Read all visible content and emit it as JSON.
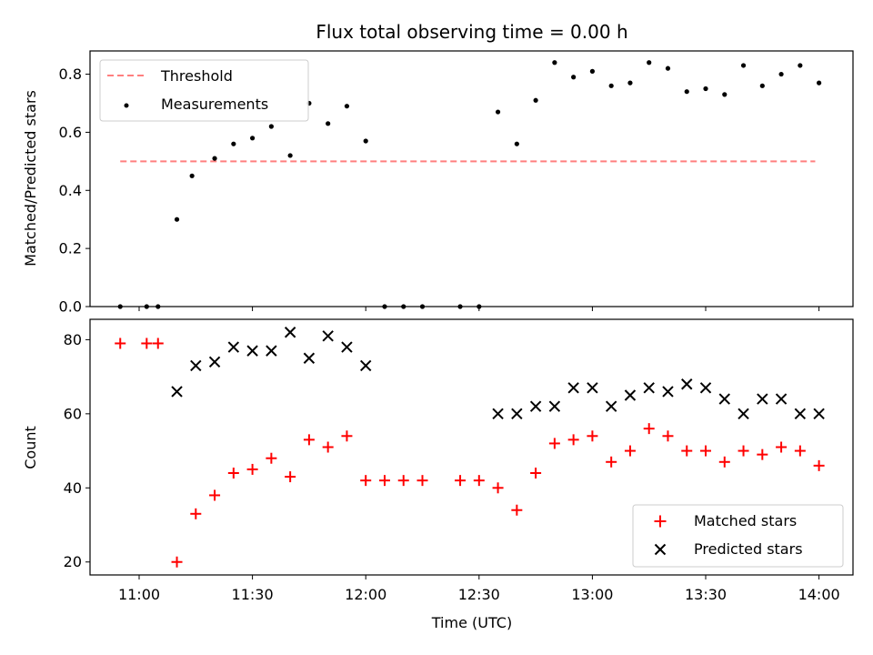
{
  "chart_data": [
    {
      "type": "scatter",
      "title": "Flux total observing time = 0.00 h",
      "xlabel": "",
      "ylabel": "Matched/Predicted stars",
      "ylim": [
        0,
        0.88
      ],
      "yticks": [
        0.0,
        0.2,
        0.4,
        0.6,
        0.8
      ],
      "ytick_labels": [
        "0.0",
        "0.2",
        "0.4",
        "0.6",
        "0.8"
      ],
      "xlim": [
        "10:47",
        "14:09"
      ],
      "grid": false,
      "legend_position": "top-left",
      "series": [
        {
          "name": "Threshold",
          "style": "dashed-line",
          "color": "#ff7f7f",
          "x": [
            "10:55",
            "13:59"
          ],
          "y": [
            0.5,
            0.5
          ]
        },
        {
          "name": "Measurements",
          "style": "dot",
          "color": "#000000",
          "x": [
            "10:55",
            "11:02",
            "11:05",
            "11:10",
            "11:14",
            "11:20",
            "11:25",
            "11:30",
            "11:35",
            "11:40",
            "11:45",
            "11:50",
            "11:55",
            "12:00",
            "12:05",
            "12:10",
            "12:15",
            "12:25",
            "12:30",
            "12:35",
            "12:40",
            "12:45",
            "12:50",
            "12:55",
            "13:00",
            "13:05",
            "13:10",
            "13:15",
            "13:20",
            "13:25",
            "13:30",
            "13:35",
            "13:40",
            "13:45",
            "13:50",
            "13:55",
            "14:00"
          ],
          "y": [
            0.0,
            0.0,
            0.0,
            0.3,
            0.45,
            0.51,
            0.56,
            0.58,
            0.62,
            0.52,
            0.7,
            0.63,
            0.69,
            0.57,
            0.0,
            0.0,
            0.0,
            0.0,
            0.0,
            0.67,
            0.56,
            0.71,
            0.84,
            0.79,
            0.81,
            0.76,
            0.77,
            0.84,
            0.82,
            0.74,
            0.75,
            0.73,
            0.83,
            0.76,
            0.8,
            0.83,
            0.77
          ]
        }
      ]
    },
    {
      "type": "scatter",
      "title": "",
      "xlabel": "Time (UTC)",
      "ylabel": "Count",
      "ylim": [
        16.5,
        85.5
      ],
      "yticks": [
        20,
        40,
        60,
        80
      ],
      "ytick_labels": [
        "20",
        "40",
        "60",
        "80"
      ],
      "xlim": [
        "10:47",
        "14:09"
      ],
      "xticks": [
        "11:00",
        "11:30",
        "12:00",
        "12:30",
        "13:00",
        "13:30",
        "14:00"
      ],
      "grid": false,
      "legend_position": "bottom-right",
      "series": [
        {
          "name": "Matched stars",
          "marker": "+",
          "color": "#ff0000",
          "x": [
            "10:55",
            "11:02",
            "11:05",
            "11:10",
            "11:15",
            "11:20",
            "11:25",
            "11:30",
            "11:35",
            "11:40",
            "11:45",
            "11:50",
            "11:55",
            "12:00",
            "12:05",
            "12:10",
            "12:15",
            "12:25",
            "12:30",
            "12:35",
            "12:40",
            "12:45",
            "12:50",
            "12:55",
            "13:00",
            "13:05",
            "13:10",
            "13:15",
            "13:20",
            "13:25",
            "13:30",
            "13:35",
            "13:40",
            "13:45",
            "13:50",
            "13:55",
            "14:00"
          ],
          "y": [
            79,
            79,
            79,
            20,
            33,
            38,
            44,
            45,
            48,
            43,
            53,
            51,
            54,
            42,
            42,
            42,
            42,
            42,
            42,
            40,
            34,
            44,
            52,
            53,
            54,
            47,
            50,
            56,
            54,
            50,
            50,
            47,
            50,
            49,
            51,
            50,
            46
          ]
        },
        {
          "name": "Predicted stars",
          "marker": "x",
          "color": "#000000",
          "x": [
            "11:10",
            "11:15",
            "11:20",
            "11:25",
            "11:30",
            "11:35",
            "11:40",
            "11:45",
            "11:50",
            "11:55",
            "12:00",
            "12:35",
            "12:40",
            "12:45",
            "12:50",
            "12:55",
            "13:00",
            "13:05",
            "13:10",
            "13:15",
            "13:20",
            "13:25",
            "13:30",
            "13:35",
            "13:40",
            "13:45",
            "13:50",
            "13:55",
            "14:00"
          ],
          "y": [
            66,
            73,
            74,
            78,
            77,
            77,
            82,
            75,
            81,
            78,
            73,
            60,
            60,
            62,
            62,
            67,
            67,
            62,
            65,
            67,
            66,
            68,
            67,
            64,
            60,
            64,
            64,
            60,
            60
          ]
        }
      ]
    }
  ]
}
